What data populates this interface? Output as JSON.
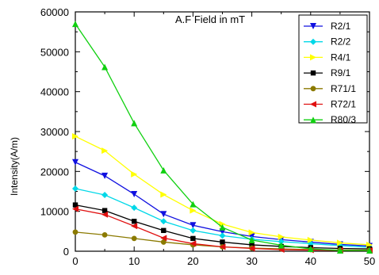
{
  "chart_data": {
    "type": "line",
    "title": "A.F Field in mT",
    "xlabel": "",
    "ylabel": "Intensity(A/m)",
    "xlim": [
      0,
      50
    ],
    "ylim": [
      0,
      60000
    ],
    "x_ticks": [
      0,
      10,
      20,
      30,
      40,
      50
    ],
    "y_ticks": [
      0,
      10000,
      20000,
      30000,
      40000,
      50000,
      60000
    ],
    "grid": false,
    "legend_position": "top-right",
    "x": [
      0,
      5,
      10,
      15,
      20,
      25,
      30,
      35,
      40,
      45,
      50
    ],
    "series": [
      {
        "name": "R2/1",
        "color": "#1010e0",
        "marker": "triangle-down",
        "values": [
          22300,
          18900,
          14300,
          9300,
          6500,
          4900,
          3700,
          2900,
          2300,
          1700,
          1300
        ]
      },
      {
        "name": "R2/2",
        "color": "#00d8e8",
        "marker": "diamond",
        "values": [
          15700,
          14100,
          10900,
          7500,
          5200,
          3900,
          3000,
          2400,
          1900,
          1400,
          1000
        ]
      },
      {
        "name": "R4/1",
        "color": "#ffff00",
        "marker": "triangle-right",
        "values": [
          28800,
          25200,
          19300,
          14200,
          10200,
          6800,
          4700,
          3600,
          2800,
          2100,
          1600
        ]
      },
      {
        "name": "R9/1",
        "color": "#000000",
        "marker": "square",
        "values": [
          11600,
          10200,
          7500,
          5200,
          3200,
          2300,
          1600,
          1200,
          900,
          700,
          600
        ]
      },
      {
        "name": "R71/1",
        "color": "#8b7a00",
        "marker": "circle",
        "values": [
          4800,
          4100,
          3200,
          2300,
          1600,
          1100,
          800,
          600,
          400,
          300,
          300
        ]
      },
      {
        "name": "R72/1",
        "color": "#e01010",
        "marker": "triangle-left",
        "values": [
          10600,
          9200,
          6300,
          3300,
          1900,
          1100,
          700,
          400,
          300,
          200,
          200
        ]
      },
      {
        "name": "R80/3",
        "color": "#10d010",
        "marker": "triangle-up",
        "values": [
          57000,
          46200,
          32100,
          20300,
          11800,
          6000,
          2800,
          1500,
          600,
          200,
          200
        ]
      }
    ]
  }
}
